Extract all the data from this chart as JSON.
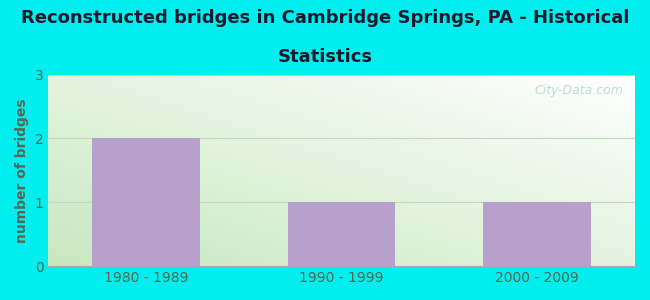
{
  "title_line1": "Reconstructed bridges in Cambridge Springs, PA - Historical",
  "title_line2": "Statistics",
  "categories": [
    "1980 - 1989",
    "1990 - 1999",
    "2000 - 2009"
  ],
  "values": [
    2,
    1,
    1
  ],
  "bar_color": "#b8a0cc",
  "ylabel": "number of bridges",
  "ylim": [
    0,
    3
  ],
  "yticks": [
    0,
    1,
    2,
    3
  ],
  "background_outer": "#00eeee",
  "plot_bg_top_left": "#d8eed8",
  "plot_bg_top_right": "#ffffff",
  "plot_bg_bottom": "#d8f0d0",
  "watermark": "City-Data.com",
  "title_color": "#1a1a2e",
  "title_fontsize": 13,
  "ylabel_color": "#556655",
  "ylabel_fontsize": 10,
  "tick_color": "#556655",
  "tick_fontsize": 10,
  "grid_color": "#bbddbb",
  "bar_width": 0.55
}
